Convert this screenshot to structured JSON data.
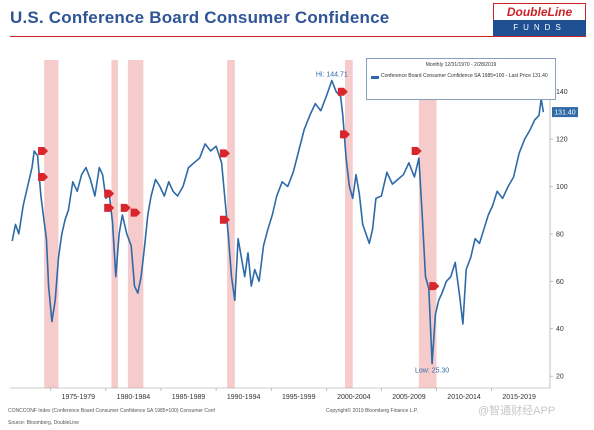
{
  "header": {
    "title": "U.S. Conference Board Consumer Confidence",
    "logo_top": "DoubleLine",
    "logo_bottom": "FUNDS"
  },
  "colors": {
    "title": "#2f5597",
    "series": "#2e6aa8",
    "recession": "#f4c2c2",
    "marker": "#d9262c",
    "logo_red": "#cc2127",
    "logo_blue": "#1d4f91"
  },
  "legend": {
    "range": "Monthly 12/31/1970 - 2/28/2019",
    "entry": "Conference Board Consumer Confidence SA 1985=100 - Last Price 131.40"
  },
  "notes": {
    "index": "CONCCONF Index (Conference Board Consumer Confidence SA 1985=100) Consumer Conf",
    "copyright": "Copyright© 2019 Bloomberg Finance L.P.",
    "source": "Source: Bloomberg, DoubleLine",
    "watermark": "@智通财经APP"
  },
  "chart_data": {
    "type": "line",
    "x_tick_labels": [
      "1975-1979",
      "1980-1984",
      "1985-1989",
      "1990-1994",
      "1995-1999",
      "2000-2004",
      "2005-2009",
      "2010-2014",
      "2015-2019"
    ],
    "ylim": [
      15,
      150
    ],
    "yticks": [
      20,
      40,
      60,
      80,
      100,
      120,
      140
    ],
    "last_price": 131.4,
    "last_price_label": "131.40",
    "annotations": [
      {
        "label": "Hi: 144.71",
        "x": 2000.0,
        "y": 144.7
      },
      {
        "label": "Low: 25.30",
        "x": 2009.1,
        "y": 25.3
      }
    ],
    "recessions": [
      [
        1973.9,
        1975.2
      ],
      [
        1980.0,
        1980.6
      ],
      [
        1981.5,
        1982.9
      ],
      [
        1990.5,
        1991.2
      ],
      [
        2001.2,
        2001.9
      ],
      [
        2007.9,
        2009.5
      ]
    ],
    "markers": [
      {
        "x": 1973.8,
        "y": 115
      },
      {
        "x": 1973.8,
        "y": 104
      },
      {
        "x": 1979.8,
        "y": 97
      },
      {
        "x": 1979.8,
        "y": 91
      },
      {
        "x": 1981.3,
        "y": 91
      },
      {
        "x": 1982.2,
        "y": 89
      },
      {
        "x": 1990.3,
        "y": 114
      },
      {
        "x": 1990.3,
        "y": 86
      },
      {
        "x": 2001.0,
        "y": 140
      },
      {
        "x": 2001.2,
        "y": 122
      },
      {
        "x": 2007.7,
        "y": 115
      },
      {
        "x": 2009.3,
        "y": 58
      }
    ],
    "series": [
      {
        "x": [
          1971.0,
          1971.3,
          1971.6,
          1972.0,
          1972.4,
          1972.8,
          1973.0,
          1973.3,
          1973.6,
          1973.9,
          1974.1,
          1974.3,
          1974.6,
          1974.9,
          1975.2,
          1975.5,
          1975.8,
          1976.1,
          1976.5,
          1976.9,
          1977.3,
          1977.7,
          1978.1,
          1978.5,
          1978.9,
          1979.2,
          1979.5,
          1979.8,
          1980.1,
          1980.4,
          1980.7,
          1981.0,
          1981.4,
          1981.8,
          1982.1,
          1982.4,
          1982.7,
          1983.0,
          1983.3,
          1983.6,
          1984.0,
          1984.4,
          1984.8,
          1985.2,
          1985.6,
          1986.0,
          1986.5,
          1987.0,
          1987.5,
          1988.0,
          1988.5,
          1989.0,
          1989.5,
          1990.0,
          1990.3,
          1990.6,
          1990.9,
          1991.2,
          1991.5,
          1991.8,
          1992.1,
          1992.4,
          1992.7,
          1993.0,
          1993.4,
          1993.8,
          1994.2,
          1994.6,
          1995.0,
          1995.5,
          1996.0,
          1996.5,
          1997.0,
          1997.5,
          1998.0,
          1998.5,
          1999.0,
          1999.5,
          2000.0,
          2000.4,
          2000.8,
          2001.0,
          2001.3,
          2001.6,
          2001.9,
          2002.2,
          2002.5,
          2002.8,
          2003.1,
          2003.4,
          2003.7,
          2004.0,
          2004.5,
          2005.0,
          2005.5,
          2006.0,
          2006.5,
          2007.0,
          2007.5,
          2007.9,
          2008.2,
          2008.5,
          2008.8,
          2009.1,
          2009.4,
          2009.7,
          2010.0,
          2010.4,
          2010.8,
          2011.2,
          2011.6,
          2011.9,
          2012.2,
          2012.6,
          2013.0,
          2013.4,
          2013.8,
          2014.2,
          2014.6,
          2015.0,
          2015.5,
          2016.0,
          2016.5,
          2017.0,
          2017.5,
          2018.0,
          2018.4,
          2018.8,
          2019.0,
          2019.2
        ],
        "values": [
          77,
          84,
          80,
          92,
          100,
          108,
          115,
          113,
          96,
          85,
          78,
          58,
          43,
          52,
          70,
          80,
          86,
          90,
          102,
          98,
          105,
          108,
          103,
          96,
          108,
          105,
          95,
          97,
          85,
          62,
          80,
          88,
          80,
          75,
          58,
          55,
          62,
          74,
          88,
          96,
          103,
          100,
          96,
          102,
          98,
          96,
          100,
          108,
          110,
          112,
          118,
          115,
          117,
          110,
          95,
          80,
          62,
          52,
          78,
          70,
          62,
          72,
          58,
          65,
          60,
          75,
          82,
          88,
          96,
          102,
          100,
          106,
          115,
          124,
          130,
          135,
          132,
          138,
          144.7,
          140,
          138,
          130,
          112,
          100,
          95,
          105,
          97,
          84,
          80,
          76,
          82,
          95,
          96,
          106,
          101,
          103,
          105,
          110,
          104,
          112,
          88,
          62,
          57,
          25.3,
          46,
          52,
          55,
          60,
          62,
          68,
          54,
          42,
          65,
          70,
          78,
          76,
          82,
          88,
          92,
          98,
          95,
          100,
          104,
          114,
          120,
          124,
          128,
          130,
          137,
          131.4
        ]
      }
    ]
  }
}
